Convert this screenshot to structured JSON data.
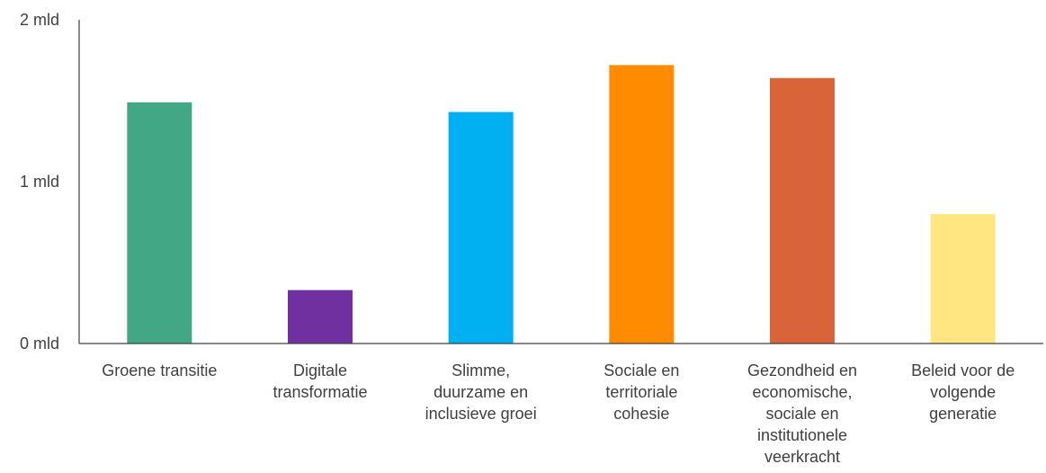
{
  "chart_data": {
    "type": "bar",
    "title": "",
    "xlabel": "",
    "ylabel": "",
    "ylim": [
      0,
      2
    ],
    "grid": false,
    "legend": "none",
    "y_ticks": [
      {
        "value": 0,
        "label": "0 mld"
      },
      {
        "value": 1,
        "label": "1 mld"
      },
      {
        "value": 2,
        "label": "2 mld"
      }
    ],
    "categories": [
      "Groene transitie",
      "Digitale transformatie",
      "Slimme, duurzame en inclusieve groei",
      "Sociale en territoriale cohesie",
      "Gezondheid en economische, sociale en institutionele veerkracht",
      "Beleid voor de volgende generatie"
    ],
    "category_lines": [
      [
        "Groene transitie"
      ],
      [
        "Digitale",
        "transformatie"
      ],
      [
        "Slimme,",
        "duurzame en",
        "inclusieve groei"
      ],
      [
        "Sociale en",
        "territoriale",
        "cohesie"
      ],
      [
        "Gezondheid en",
        "economische,",
        "sociale en",
        "institutionele",
        "veerkracht"
      ],
      [
        "Beleid voor de",
        "volgende",
        "generatie"
      ]
    ],
    "values": [
      1.49,
      0.33,
      1.43,
      1.72,
      1.64,
      0.8
    ],
    "colors": [
      "#41a784",
      "#7030a0",
      "#00b0f0",
      "#ff8c00",
      "#d9643a",
      "#ffe680"
    ]
  }
}
